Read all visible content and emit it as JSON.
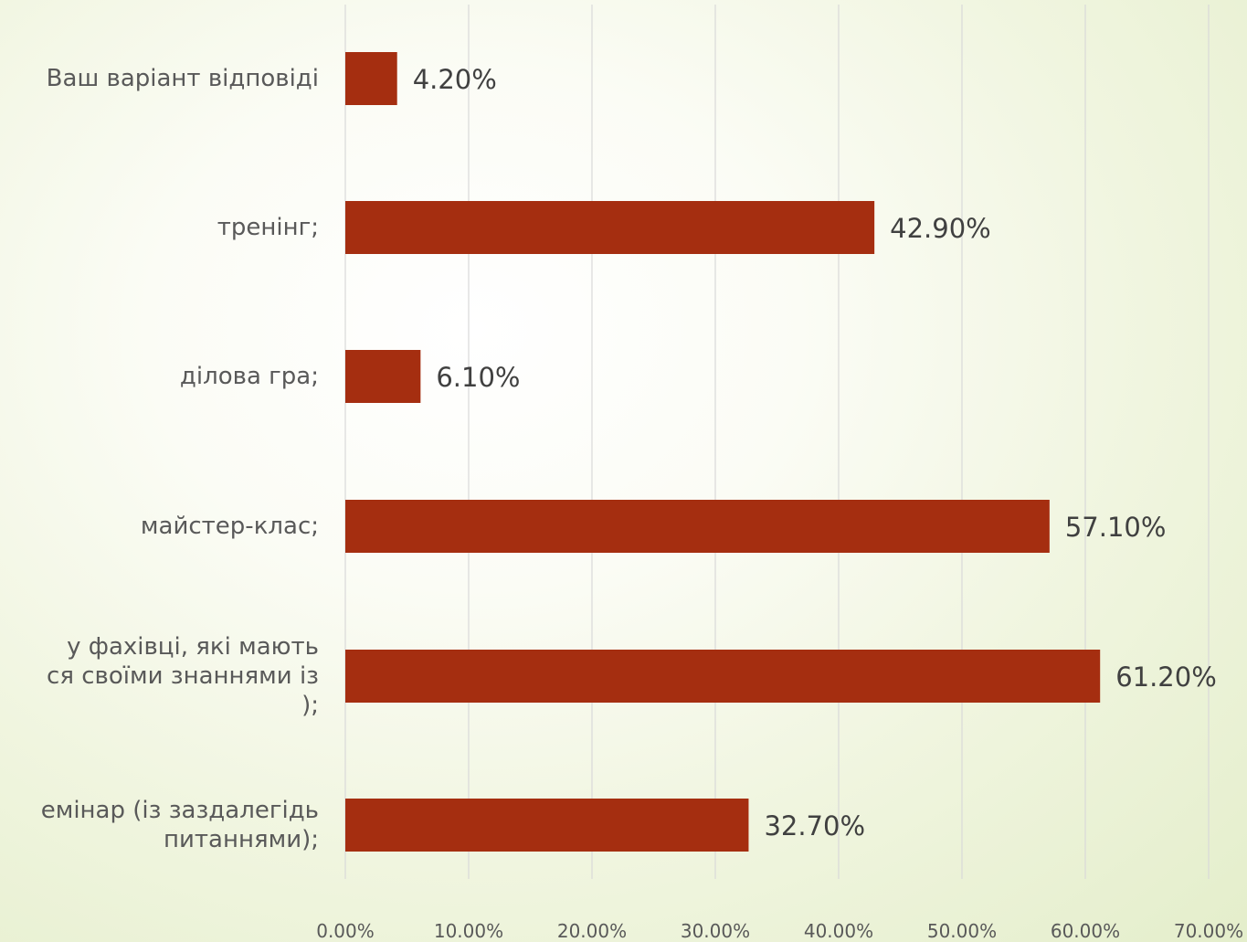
{
  "colors": {
    "bar": "#a52e10",
    "grid": "#d9d9d9",
    "label": "#595959",
    "value_label": "#404040"
  },
  "chart_data": {
    "type": "bar",
    "orientation": "horizontal",
    "categories": [
      {
        "label": "Ваш варіант відповіді",
        "lines": [
          "Ваш варіант відповіді"
        ]
      },
      {
        "label": "тренінг;",
        "lines": [
          "тренінг;"
        ]
      },
      {
        "label": "ділова гра;",
        "lines": [
          "ділова гра;"
        ]
      },
      {
        "label": "майстер-клас;",
        "lines": [
          "майстер-клас;"
        ]
      },
      {
        "label": "у фахівці, які мають ся своїми знаннями із );",
        "lines": [
          "у фахівці, які мають",
          "ся своїми знаннями із",
          ");"
        ]
      },
      {
        "label": "емінар (із заздалегідь питаннями);",
        "lines": [
          "емінар (із заздалегідь",
          "питаннями);"
        ]
      }
    ],
    "values": [
      4.2,
      42.9,
      6.1,
      57.1,
      61.2,
      32.7
    ],
    "value_labels": [
      "4.20%",
      "42.90%",
      "6.10%",
      "57.10%",
      "61.20%",
      "32.70%"
    ],
    "xlim": [
      0,
      70
    ],
    "xticks": [
      0,
      10,
      20,
      30,
      40,
      50,
      60,
      70
    ],
    "xtick_labels": [
      "0.00%",
      "10.00%",
      "20.00%",
      "30.00%",
      "40.00%",
      "50.00%",
      "60.00%",
      "70.00%"
    ],
    "grid": true,
    "legend": "none",
    "title": "",
    "xlabel": "",
    "ylabel": ""
  }
}
